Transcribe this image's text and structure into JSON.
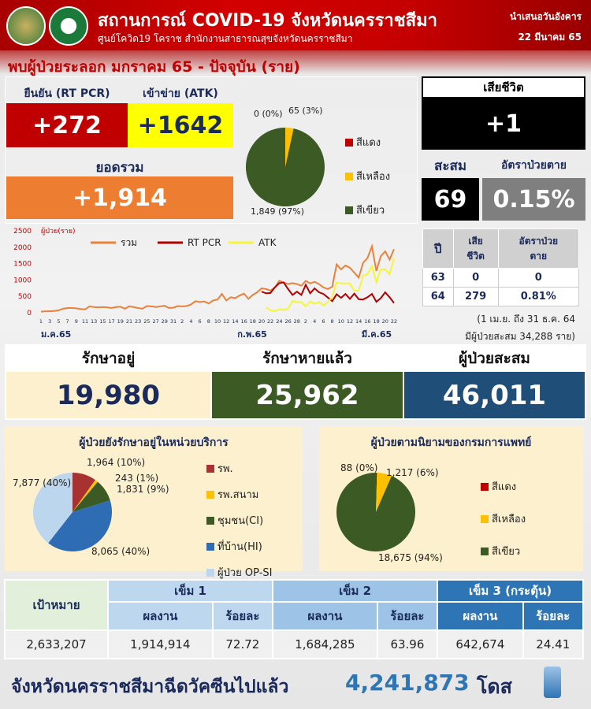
{
  "header": {
    "title": "สถานการณ์ COVID-19 จังหวัดนครราชสีมา",
    "subtitle": "ศูนย์โควิด19 โคราช สำนักงานสาธารณสุขจังหวัดนครราชสีมา",
    "presented": "นำเสนอวันอังคาร",
    "date": "22 มีนาคม 65"
  },
  "headline": "พบผู้ป่วยระลอก มกราคม 65 - ปัจจุบัน (ราย)",
  "daily": {
    "rtpcr_label": "ยืนยัน (RT PCR)",
    "rtpcr": "+272",
    "atk_label": "เข้าข่าย (ATK)",
    "atk": "+1642",
    "total_label": "ยอดรวม",
    "total": "+1,914"
  },
  "daily_pie": {
    "legend": [
      "สีแดง",
      "สีเหลือง",
      "สีเขียว"
    ],
    "labels": [
      "0 (0%)",
      "65 (3%)",
      "1,849 (97%)"
    ],
    "values": [
      0,
      65,
      1849
    ],
    "colors": [
      "#c00000",
      "#ffc000",
      "#3b5a24"
    ]
  },
  "deaths": {
    "label": "เสียชีวิต",
    "today": "+1",
    "cum_label": "สะสม",
    "rate_label": "อัตราป่วยตาย",
    "cum": "69",
    "rate": "0.15%"
  },
  "death_table": {
    "headers": [
      "ปี",
      "เสีย\nชีวิต",
      "อัตราป่วย\nตาย"
    ],
    "rows": [
      [
        "63",
        "0",
        "0"
      ],
      [
        "64",
        "279",
        "0.81%"
      ]
    ],
    "note1": "(1 เม.ย. ถึง 31 ธ.ค. 64",
    "note2": "มีผู้ป่วยสะสม  34,288 ราย)"
  },
  "chart_data": {
    "type": "line",
    "ylabel": "ผู้ป่วย(ราย)",
    "ylim": [
      0,
      2500
    ],
    "yticks": [
      "0",
      "500",
      "1000",
      "1500",
      "2000",
      "2500"
    ],
    "xticks": [
      "1",
      "3",
      "5",
      "7",
      "9",
      "11",
      "13",
      "15",
      "17",
      "19",
      "21",
      "23",
      "25",
      "27",
      "29",
      "31",
      "2",
      "4",
      "6",
      "8",
      "10",
      "12",
      "14",
      "16",
      "18",
      "20",
      "22",
      "24",
      "26",
      "28",
      "2",
      "4",
      "6",
      "8",
      "10",
      "12",
      "14",
      "16",
      "18",
      "20",
      "22"
    ],
    "months": [
      "ม.ค.65",
      "ก.พ.65",
      "มี.ค.65"
    ],
    "series": [
      {
        "name": "รวม",
        "color": "#e8823c",
        "start": 0,
        "values": [
          10,
          20,
          20,
          30,
          50,
          100,
          120,
          120,
          110,
          90,
          80,
          170,
          150,
          140,
          150,
          140,
          120,
          150,
          160,
          100,
          170,
          150,
          120,
          100,
          180,
          170,
          150,
          170,
          190,
          120,
          130,
          180,
          170,
          180,
          230,
          330,
          300,
          320,
          260,
          350,
          380,
          550,
          350,
          450,
          420,
          500,
          560,
          400,
          520,
          600,
          720,
          700,
          650,
          750,
          950,
          900,
          850,
          880,
          850,
          800,
          950,
          870,
          920,
          850,
          750,
          700,
          770,
          1450,
          1300,
          1420,
          1350,
          1200,
          1050,
          1500,
          1650,
          2000,
          1250,
          1700,
          1850,
          1600,
          1914
        ]
      },
      {
        "name": "RT PCR",
        "color": "#b00000",
        "start": 50,
        "values": [
          620,
          570,
          580,
          750,
          880,
          900,
          700,
          520,
          620,
          520,
          830,
          570,
          720,
          600,
          550,
          440,
          330,
          540,
          430,
          550,
          400,
          560,
          390,
          380,
          450,
          550,
          310,
          420,
          600,
          450,
          272
        ]
      },
      {
        "name": "ATK",
        "color": "#f5f53a",
        "start": 51,
        "values": [
          140,
          50,
          30,
          80,
          60,
          100,
          330,
          300,
          300,
          170,
          320,
          250,
          300,
          200,
          300,
          450,
          900,
          870,
          870,
          870,
          650,
          650,
          1100,
          1150,
          1400,
          900,
          1300,
          1300,
          1150,
          1642
        ]
      }
    ]
  },
  "summary": {
    "treating_label": "รักษาอยู่",
    "treating": "19,980",
    "recovered_label": "รักษาหายแล้ว",
    "recovered": "25,962",
    "cumulative_label": "ผู้ป่วยสะสม",
    "cumulative": "46,011"
  },
  "service_pie": {
    "title": "ผู้ป่วยยังรักษาอยู่ในหน่วยบริการ",
    "legend": [
      "รพ.",
      "รพ.สนาม",
      "ชุมชน(CI)",
      "ที่บ้าน(HI)",
      "ผู้ป่วย OP-SI"
    ],
    "labels": [
      "1,964 (10%)",
      "243 (1%)",
      "1,831 (9%)",
      "8,065 (40%)",
      "7,877 (40%)"
    ],
    "values": [
      1964,
      243,
      1831,
      8065,
      7877
    ],
    "colors": [
      "#a83232",
      "#ffc000",
      "#3b5a24",
      "#2e6db4",
      "#bcd6ee"
    ]
  },
  "dms_pie": {
    "title": "ผู้ป่วยตามนิยามของกรมการแพทย์",
    "legend": [
      "สีแดง",
      "สีเหลือง",
      "สีเขียว"
    ],
    "labels": [
      "88 (0%)",
      "1,217 (6%)",
      "18,675 (94%)"
    ],
    "values": [
      88,
      1217,
      18675
    ],
    "colors": [
      "#c00000",
      "#ffc000",
      "#3b5a24"
    ]
  },
  "vaccine": {
    "target_label": "เป้าหมาย",
    "dose1": "เข็ม 1",
    "dose2": "เข็ม 2",
    "dose3": "เข็ม 3 (กระตุ้น)",
    "result": "ผลงาน",
    "percent": "ร้อยละ",
    "row": [
      "2,633,207",
      "1,914,914",
      "72.72",
      "1,684,285",
      "63.96",
      "642,674",
      "24.41"
    ],
    "footer_text": "จังหวัดนครราชสีมาฉีดวัคซีนไปแล้ว",
    "footer_total": "4,241,873",
    "footer_unit": "โดส"
  }
}
